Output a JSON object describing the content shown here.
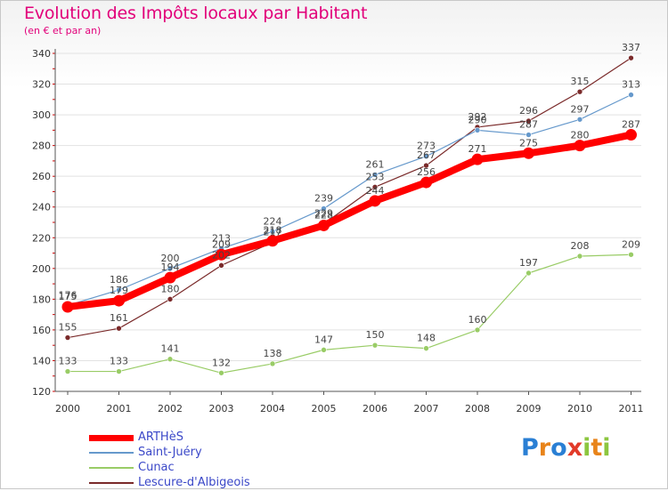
{
  "header": {
    "title": "Evolution des Impôts locaux par Habitant",
    "subtitle": "(en € et par an)"
  },
  "chart_data": {
    "type": "line",
    "title": "Evolution des Impôts locaux par Habitant",
    "subtitle": "(en € et par an)",
    "xlabel": "",
    "ylabel": "",
    "x": [
      "2000",
      "2001",
      "2002",
      "2003",
      "2004",
      "2005",
      "2006",
      "2007",
      "2008",
      "2009",
      "2010",
      "2011"
    ],
    "ylim": [
      120,
      340
    ],
    "yticks": [
      120,
      140,
      160,
      180,
      200,
      220,
      240,
      260,
      280,
      300,
      320,
      340
    ],
    "grid": "horizontal",
    "legend_position": "bottom-left",
    "series": [
      {
        "name": "ARTHèS",
        "color": "#ff0000",
        "values": [
          175,
          179,
          194,
          209,
          218,
          228,
          244,
          256,
          271,
          275,
          280,
          287
        ]
      },
      {
        "name": "Saint-Juéry",
        "color": "#6699cc",
        "values": [
          176,
          186,
          200,
          213,
          224,
          239,
          261,
          273,
          290,
          287,
          297,
          313
        ]
      },
      {
        "name": "Cunac",
        "color": "#99cc66",
        "values": [
          133,
          133,
          141,
          132,
          138,
          147,
          150,
          148,
          160,
          197,
          208,
          209
        ]
      },
      {
        "name": "Lescure-d'Albigeois",
        "color": "#7a2a2a",
        "values": [
          155,
          161,
          180,
          202,
          217,
          229,
          253,
          267,
          292,
          296,
          315,
          337
        ]
      }
    ]
  },
  "legend": {
    "items": [
      {
        "label": "ARTHèS"
      },
      {
        "label": "Saint-Juéry"
      },
      {
        "label": "Cunac"
      },
      {
        "label": "Lescure-d'Albigeois"
      }
    ]
  },
  "logo": {
    "letters": [
      "P",
      "r",
      "o",
      "x",
      "i",
      "t",
      "i"
    ],
    "colors": [
      "#2a7fd4",
      "#e8841a",
      "#2a7fd4",
      "#e23b2a",
      "#8cc63f",
      "#e8841a",
      "#8cc63f"
    ]
  }
}
